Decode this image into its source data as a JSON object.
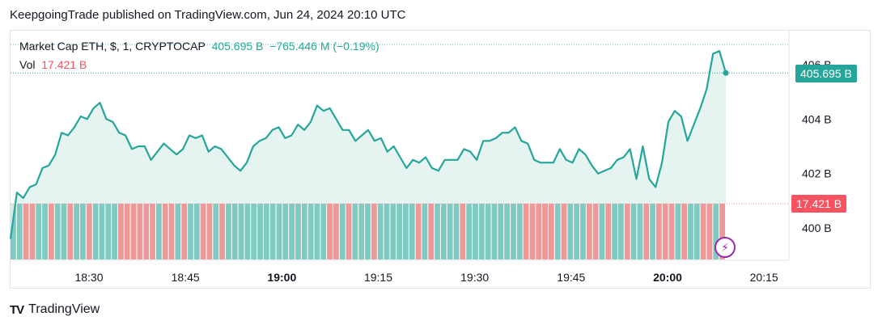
{
  "header": {
    "publish_line": "KeepgoingTrade published on TradingView.com, Jun 24, 2024 20:10 UTC"
  },
  "legend": {
    "symbol": "Market Cap ETH, $, 1, CRYPTOCAP",
    "value": "405.695 B",
    "change": "−765.446 M (−0.19%)",
    "vol_label": "Vol",
    "vol_value": "17.421 B"
  },
  "badges": {
    "price": "405.695 B",
    "volume": "17.421 B"
  },
  "footer": {
    "brand": "TradingView"
  },
  "colors": {
    "line": "#26a69a",
    "area": "#e0f2ef",
    "vol_up": "#7fcbc2",
    "vol_down": "#ee9999",
    "price_badge": "#26a69a",
    "vol_badge": "#f7525f"
  },
  "chart_data": {
    "type": "line",
    "ylim": [
      399,
      407
    ],
    "y_ticks": [
      400,
      402,
      404,
      406
    ],
    "y_tick_labels": [
      "400 B",
      "402 B",
      "404 B",
      "406 B"
    ],
    "x_ticks": [
      "18:30",
      "18:45",
      "19:00",
      "19:15",
      "19:30",
      "19:45",
      "20:00",
      "20:15"
    ],
    "x_tick_bold": [
      false,
      false,
      true,
      false,
      false,
      false,
      true,
      false
    ],
    "x_start_minute": 1095,
    "x_ticks_minute": [
      1110,
      1125,
      1140,
      1155,
      1170,
      1185,
      1200,
      1215
    ],
    "x_end_minute": 1235,
    "series": [
      {
        "values": [
          399.6,
          401.3,
          401.1,
          401.5,
          401.6,
          402.2,
          402.3,
          402.7,
          403.5,
          403.4,
          403.7,
          404.1,
          404.0,
          404.4,
          404.6,
          404.0,
          403.9,
          403.5,
          403.4,
          402.9,
          403.0,
          403.0,
          402.5,
          402.8,
          403.1,
          402.9,
          402.7,
          402.9,
          403.4,
          403.3,
          403.4,
          402.8,
          403.0,
          402.9,
          402.6,
          402.3,
          402.1,
          402.4,
          403.0,
          403.2,
          403.3,
          403.6,
          403.7,
          403.3,
          403.4,
          403.8,
          403.6,
          403.9,
          404.5,
          404.3,
          404.4,
          404.0,
          403.6,
          403.6,
          403.2,
          403.4,
          403.6,
          403.2,
          403.3,
          402.8,
          403.0,
          402.6,
          402.2,
          402.5,
          402.4,
          402.6,
          402.2,
          402.1,
          402.5,
          402.5,
          402.5,
          402.9,
          402.8,
          402.5,
          403.2,
          403.2,
          403.3,
          403.5,
          403.5,
          403.7,
          403.2,
          403.1,
          402.5,
          402.4,
          402.4,
          402.4,
          402.9,
          402.5,
          402.4,
          402.9,
          402.7,
          402.3,
          402.0,
          402.1,
          402.2,
          402.5,
          402.6,
          402.9,
          401.8,
          403.0,
          401.8,
          401.5,
          402.4,
          403.9,
          404.3,
          404.1,
          403.2,
          403.8,
          404.4,
          405.1,
          406.4,
          406.5,
          405.695
        ],
        "volume_up": [
          true,
          true,
          false,
          false,
          true,
          true,
          false,
          true,
          true,
          false,
          true,
          true,
          false,
          true,
          true,
          true,
          true,
          false,
          false,
          false,
          false,
          false,
          false,
          true,
          false,
          false,
          true,
          false,
          true,
          true,
          false,
          false,
          true,
          false,
          true,
          true,
          true,
          true,
          true,
          true,
          true,
          true,
          true,
          true,
          true,
          true,
          true,
          true,
          true,
          true,
          false,
          false,
          true,
          false,
          true,
          true,
          true,
          false,
          true,
          true,
          true,
          true,
          true,
          true,
          false,
          true,
          false,
          true,
          true,
          true,
          true,
          false,
          true,
          true,
          true,
          true,
          true,
          true,
          true,
          true,
          true,
          false,
          false,
          false,
          false,
          false,
          true,
          false,
          true,
          true,
          true,
          false,
          false,
          true,
          false,
          true,
          true,
          false,
          true,
          true,
          false,
          true,
          false,
          false,
          false,
          true,
          false,
          true,
          true,
          false,
          false,
          true,
          false
        ]
      }
    ]
  }
}
